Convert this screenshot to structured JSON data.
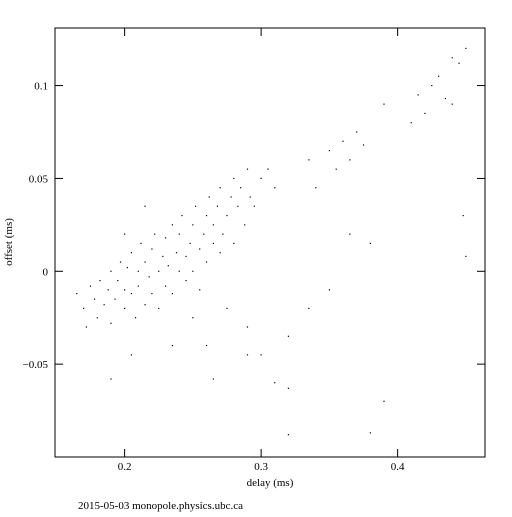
{
  "chart_data": {
    "type": "scatter",
    "x_label": "delay (ms)",
    "y_label": "offset (ms)",
    "footer": "2015-05-03 monopole.physics.ubc.ca",
    "xlim": [
      0.149,
      0.464
    ],
    "ylim": [
      -0.1,
      0.131
    ],
    "xticks": [
      0.2,
      0.3,
      0.4
    ],
    "yticks": [
      {
        "value": -0.05,
        "label": "−0.05"
      },
      0,
      0.05,
      0.1
    ],
    "color": "#000000",
    "x": [
      0.165,
      0.17,
      0.172,
      0.175,
      0.178,
      0.18,
      0.182,
      0.185,
      0.188,
      0.19,
      0.19,
      0.193,
      0.195,
      0.197,
      0.2,
      0.2,
      0.202,
      0.205,
      0.205,
      0.208,
      0.21,
      0.21,
      0.212,
      0.215,
      0.215,
      0.218,
      0.22,
      0.22,
      0.222,
      0.225,
      0.225,
      0.228,
      0.23,
      0.23,
      0.232,
      0.235,
      0.235,
      0.238,
      0.24,
      0.24,
      0.242,
      0.245,
      0.245,
      0.248,
      0.25,
      0.25,
      0.252,
      0.255,
      0.255,
      0.258,
      0.26,
      0.26,
      0.262,
      0.265,
      0.265,
      0.268,
      0.27,
      0.27,
      0.272,
      0.275,
      0.278,
      0.28,
      0.28,
      0.283,
      0.285,
      0.288,
      0.29,
      0.292,
      0.295,
      0.3,
      0.305,
      0.31,
      0.205,
      0.235,
      0.26,
      0.215,
      0.2,
      0.25,
      0.275,
      0.29,
      0.335,
      0.34,
      0.35,
      0.355,
      0.36,
      0.365,
      0.37,
      0.375,
      0.39,
      0.41,
      0.415,
      0.42,
      0.425,
      0.43,
      0.435,
      0.44,
      0.445,
      0.44,
      0.45,
      0.448,
      0.45,
      0.365,
      0.38,
      0.3,
      0.31,
      0.32,
      0.265,
      0.19,
      0.32,
      0.39,
      0.38,
      0.335,
      0.35,
      0.29,
      0.32
    ],
    "y": [
      -0.012,
      -0.02,
      -0.03,
      -0.008,
      -0.015,
      -0.025,
      -0.005,
      -0.018,
      -0.01,
      0.0,
      -0.028,
      -0.015,
      -0.005,
      0.005,
      -0.02,
      -0.01,
      0.002,
      -0.012,
      0.01,
      -0.025,
      0.0,
      -0.008,
      0.015,
      -0.018,
      0.005,
      -0.003,
      0.012,
      -0.012,
      0.02,
      0.0,
      -0.02,
      0.008,
      -0.008,
      0.018,
      0.003,
      0.025,
      -0.012,
      0.01,
      0.0,
      0.02,
      0.03,
      0.008,
      -0.005,
      0.015,
      0.025,
      0.0,
      0.035,
      0.012,
      -0.01,
      0.02,
      0.03,
      0.005,
      0.04,
      0.015,
      0.025,
      0.035,
      0.01,
      0.045,
      0.02,
      0.03,
      0.04,
      0.05,
      0.015,
      0.035,
      0.045,
      0.025,
      0.055,
      0.04,
      0.035,
      0.05,
      0.055,
      0.045,
      -0.045,
      -0.04,
      -0.04,
      0.035,
      0.02,
      -0.025,
      -0.02,
      -0.03,
      0.06,
      0.045,
      0.065,
      0.055,
      0.07,
      0.06,
      0.075,
      0.068,
      0.09,
      0.08,
      0.095,
      0.085,
      0.1,
      0.105,
      0.093,
      0.115,
      0.112,
      0.09,
      0.12,
      0.03,
      0.008,
      0.02,
      0.015,
      -0.045,
      -0.06,
      -0.063,
      -0.058,
      -0.058,
      -0.088,
      -0.07,
      -0.087,
      -0.02,
      -0.01,
      -0.045,
      -0.035
    ]
  }
}
